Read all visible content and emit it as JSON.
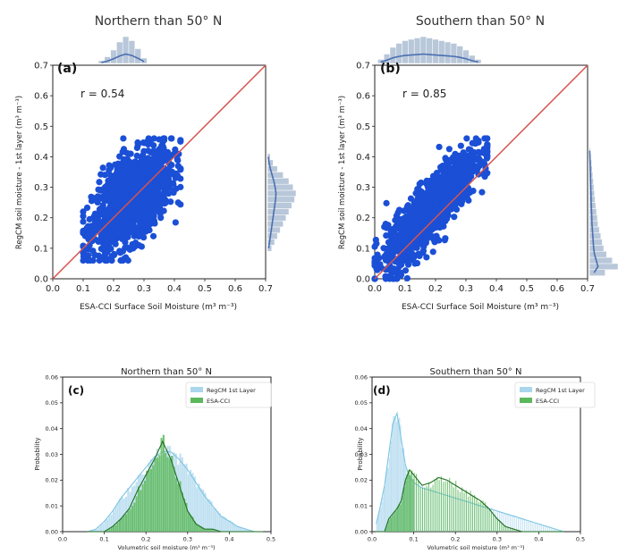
{
  "figure": {
    "panels": [
      {
        "id": "a",
        "title": "Northern than 50° N",
        "panel_label": "(a)",
        "annotation": "r = 0.54",
        "xlabel": "ESA-CCI Surface Soil Moisture (m³ m⁻³)",
        "ylabel": "RegCM soil moisture - 1st layer (m³ m⁻³)"
      },
      {
        "id": "b",
        "title": "Southern than 50° N",
        "panel_label": "(b)",
        "annotation": "r = 0.85",
        "xlabel": "ESA-CCI Surface Soil Moisture (m³ m⁻³)",
        "ylabel": "RegCM soil moisture - 1st layer (m³ m⁻³)"
      },
      {
        "id": "c",
        "title": "Northern than 50° N",
        "panel_label": "(c)",
        "xlabel": "Volumetric soil moisture (m³ m⁻³)",
        "ylabel": "Probability",
        "legend": [
          "RegCM 1st Layer",
          "ESA-CCI"
        ]
      },
      {
        "id": "d",
        "title": "Southern than 50° N",
        "panel_label": "(d)",
        "xlabel": "Volumetric soil moisture (m³ m⁻³)",
        "ylabel": "Probability",
        "legend": [
          "RegCM 1st Layer",
          "ESA-CCI"
        ]
      }
    ]
  },
  "chart_data": [
    {
      "type": "scatter",
      "panel": "a",
      "title": "Northern than 50° N",
      "xlabel": "ESA-CCI Surface Soil Moisture (m³ m⁻³)",
      "ylabel": "RegCM soil moisture - 1st layer (m³ m⁻³)",
      "xlim": [
        0.0,
        0.7
      ],
      "ylim": [
        0.0,
        0.7
      ],
      "xticks": [
        "0.0",
        "0.1",
        "0.2",
        "0.3",
        "0.4",
        "0.5",
        "0.6",
        "0.7"
      ],
      "yticks": [
        "0.0",
        "0.1",
        "0.2",
        "0.3",
        "0.4",
        "0.5",
        "0.6",
        "0.7"
      ],
      "annotation": "r = 0.54",
      "one_to_one_line": true,
      "point_cloud": {
        "x_range": [
          0.1,
          0.42
        ],
        "y_range": [
          0.06,
          0.46
        ],
        "correlation": 0.54
      },
      "marginal_x": {
        "bins": [
          0.16,
          0.18,
          0.2,
          0.22,
          0.24,
          0.26,
          0.28,
          0.3
        ],
        "heights": [
          0.1,
          0.25,
          0.5,
          0.8,
          1.0,
          0.85,
          0.55,
          0.2
        ]
      },
      "marginal_y": {
        "bins": [
          0.1,
          0.12,
          0.14,
          0.16,
          0.18,
          0.2,
          0.22,
          0.24,
          0.26,
          0.28,
          0.3,
          0.32,
          0.34,
          0.36,
          0.38,
          0.4
        ],
        "heights": [
          0.15,
          0.25,
          0.35,
          0.45,
          0.55,
          0.65,
          0.75,
          0.85,
          0.95,
          1.0,
          0.9,
          0.75,
          0.55,
          0.35,
          0.2,
          0.1
        ]
      },
      "colors": {
        "points": "#1a4fd6",
        "line": "#d9534f",
        "marginal": "#b8c7d9",
        "kde": "#4a6fb0"
      }
    },
    {
      "type": "scatter",
      "panel": "b",
      "title": "Southern than 50° N",
      "xlabel": "ESA-CCI Surface Soil Moisture (m³ m⁻³)",
      "ylabel": "RegCM soil moisture - 1st layer (m³ m⁻³)",
      "xlim": [
        0.0,
        0.7
      ],
      "ylim": [
        0.0,
        0.7
      ],
      "xticks": [
        "0.0",
        "0.1",
        "0.2",
        "0.3",
        "0.4",
        "0.5",
        "0.6",
        "0.7"
      ],
      "yticks": [
        "0.0",
        "0.1",
        "0.2",
        "0.3",
        "0.4",
        "0.5",
        "0.6",
        "0.7"
      ],
      "annotation": "r = 0.85",
      "one_to_one_line": true,
      "point_cloud": {
        "x_range": [
          0.0,
          0.37
        ],
        "y_range": [
          0.0,
          0.46
        ],
        "correlation": 0.85
      },
      "marginal_x": {
        "bins": [
          0.02,
          0.04,
          0.06,
          0.08,
          0.1,
          0.12,
          0.14,
          0.16,
          0.18,
          0.2,
          0.22,
          0.24,
          0.26,
          0.28,
          0.3,
          0.32,
          0.34
        ],
        "heights": [
          0.15,
          0.35,
          0.6,
          0.75,
          0.85,
          0.9,
          0.95,
          1.0,
          0.95,
          0.9,
          0.85,
          0.8,
          0.75,
          0.65,
          0.5,
          0.3,
          0.15
        ]
      },
      "marginal_y": {
        "bins": [
          0.02,
          0.04,
          0.06,
          0.08,
          0.1,
          0.12,
          0.14,
          0.16,
          0.18,
          0.2,
          0.22,
          0.24,
          0.26,
          0.28,
          0.3,
          0.32,
          0.34,
          0.36,
          0.38,
          0.4,
          0.42
        ],
        "heights": [
          0.55,
          1.0,
          0.8,
          0.6,
          0.5,
          0.45,
          0.4,
          0.35,
          0.3,
          0.28,
          0.25,
          0.22,
          0.2,
          0.18,
          0.16,
          0.14,
          0.12,
          0.1,
          0.08,
          0.06,
          0.04
        ]
      },
      "colors": {
        "points": "#1a4fd6",
        "line": "#d9534f",
        "marginal": "#b8c7d9",
        "kde": "#4a6fb0"
      }
    },
    {
      "type": "area",
      "panel": "c",
      "title": "Northern than 50° N",
      "xlabel": "Volumetric soil moisture (m³ m⁻³)",
      "ylabel": "Probability",
      "xlim": [
        0.0,
        0.5
      ],
      "ylim": [
        0.0,
        0.06
      ],
      "xticks": [
        "0.0",
        "0.1",
        "0.2",
        "0.3",
        "0.4",
        "0.5"
      ],
      "yticks": [
        "0.00",
        "0.01",
        "0.02",
        "0.03",
        "0.04",
        "0.05",
        "0.06"
      ],
      "legend_position": "top-right",
      "x": [
        0.06,
        0.08,
        0.1,
        0.12,
        0.14,
        0.16,
        0.18,
        0.2,
        0.22,
        0.24,
        0.26,
        0.28,
        0.3,
        0.32,
        0.34,
        0.36,
        0.38,
        0.4,
        0.42,
        0.44,
        0.46,
        0.48
      ],
      "series": [
        {
          "name": "RegCM 1st Layer",
          "color": "#a9d6ec",
          "line_color": "#7cc4e4",
          "values": [
            0.0,
            0.001,
            0.004,
            0.008,
            0.013,
            0.017,
            0.021,
            0.025,
            0.029,
            0.031,
            0.031,
            0.028,
            0.024,
            0.019,
            0.014,
            0.01,
            0.006,
            0.004,
            0.002,
            0.001,
            0.0,
            0.0
          ]
        },
        {
          "name": "ESA-CCI",
          "color": "#5cb85c",
          "line_color": "#1f6e1f",
          "values": [
            0.0,
            0.0,
            0.0,
            0.002,
            0.005,
            0.009,
            0.016,
            0.022,
            0.028,
            0.035,
            0.028,
            0.018,
            0.008,
            0.003,
            0.001,
            0.001,
            0.0,
            0.0,
            0.0,
            0.0,
            0.0,
            0.0
          ]
        }
      ]
    },
    {
      "type": "area",
      "panel": "d",
      "title": "Southern than 50° N",
      "xlabel": "Volumetric soil moisture (m³ m⁻³)",
      "ylabel": "Probability",
      "xlim": [
        0.0,
        0.5
      ],
      "ylim": [
        0.0,
        0.06
      ],
      "xticks": [
        "0.0",
        "0.1",
        "0.2",
        "0.3",
        "0.4",
        "0.5"
      ],
      "yticks": [
        "0.00",
        "0.01",
        "0.02",
        "0.03",
        "0.04",
        "0.05",
        "0.06"
      ],
      "legend_position": "top-right",
      "x": [
        0.01,
        0.02,
        0.03,
        0.04,
        0.05,
        0.06,
        0.07,
        0.08,
        0.09,
        0.1,
        0.12,
        0.14,
        0.16,
        0.18,
        0.2,
        0.22,
        0.24,
        0.26,
        0.28,
        0.3,
        0.32,
        0.34,
        0.36,
        0.38,
        0.4,
        0.42,
        0.44,
        0.46
      ],
      "series": [
        {
          "name": "RegCM 1st Layer",
          "color": "#a9d6ec",
          "line_color": "#7cc4e4",
          "values": [
            0.003,
            0.01,
            0.018,
            0.03,
            0.042,
            0.046,
            0.036,
            0.026,
            0.021,
            0.019,
            0.017,
            0.016,
            0.015,
            0.014,
            0.013,
            0.012,
            0.011,
            0.01,
            0.009,
            0.008,
            0.007,
            0.006,
            0.005,
            0.004,
            0.003,
            0.002,
            0.001,
            0.0
          ]
        },
        {
          "name": "ESA-CCI",
          "color": "#5cb85c",
          "line_color": "#1f6e1f",
          "values": [
            0.0,
            0.0,
            0.0,
            0.005,
            0.007,
            0.009,
            0.012,
            0.02,
            0.024,
            0.022,
            0.018,
            0.019,
            0.021,
            0.02,
            0.018,
            0.016,
            0.014,
            0.012,
            0.009,
            0.005,
            0.002,
            0.001,
            0.0,
            0.0,
            0.0,
            0.0,
            0.0,
            0.0
          ]
        }
      ]
    }
  ]
}
